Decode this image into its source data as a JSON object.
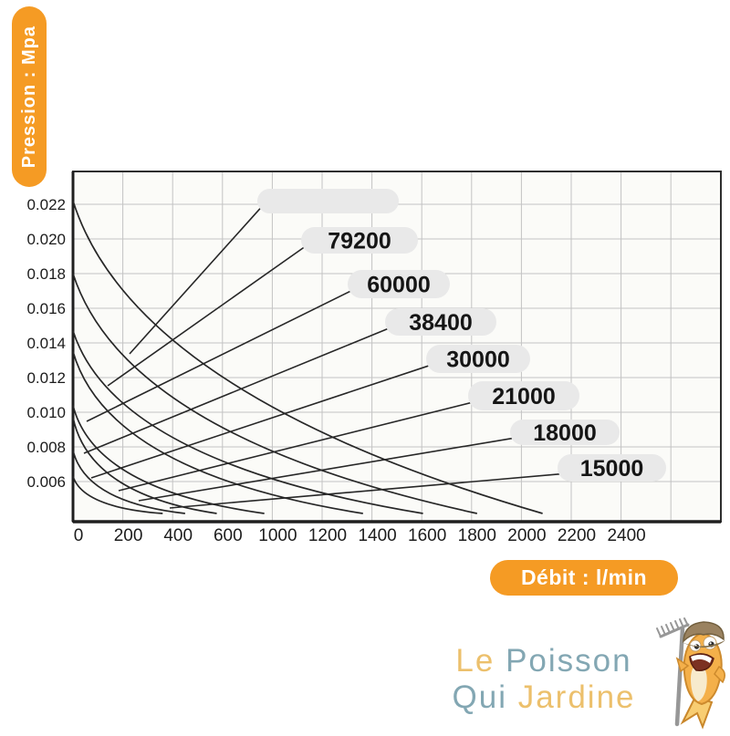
{
  "axis_labels": {
    "y": "Pression : Mpa",
    "x": "Débit : l/min"
  },
  "logo": {
    "word1": "Le",
    "word2": "Poisson",
    "word3": "Qui",
    "word4": "Jardine"
  },
  "colors": {
    "accent_orange": "#f59b24",
    "pill_gray": "#e9e9e9",
    "pill_text": "#151515",
    "curve": "#272727",
    "grid": "#c3c3c3",
    "plot_bg": "#fbfbf8",
    "border": "#2e2e2e",
    "tick_text": "#1c1c1c",
    "logo_gold": "#ecc06c",
    "logo_teal": "#83a7b3"
  },
  "chart_data": {
    "type": "line",
    "title": "",
    "xlabel": "Débit : l/min",
    "ylabel": "Pression : Mpa",
    "grid": true,
    "legend_position": "labels-on-chart",
    "xlim": [
      0,
      2600
    ],
    "ylim": [
      0.0037,
      0.0237
    ],
    "x_tick_labels": [
      "0",
      "200",
      "400",
      "600",
      "1000",
      "1200",
      "1400",
      "1600",
      "1800",
      "2000",
      "2200",
      "2400"
    ],
    "y_tick_labels": [
      "0.022",
      "0.020",
      "0.018",
      "0.016",
      "0.014",
      "0.012",
      "0.010",
      "0.008",
      "0.006"
    ],
    "y_tick_values": [
      0.022,
      0.02,
      0.018,
      0.016,
      0.014,
      0.012,
      0.01,
      0.008,
      0.006
    ],
    "series": [
      {
        "label": "",
        "y_intercept_mpa": 0.0222,
        "x_max_lmin": 1885,
        "bend": [
          0.13,
          0.62
        ],
        "leader_from": [
          142,
          388
        ],
        "label_box": [
          282,
          207,
          155,
          27
        ]
      },
      {
        "label": "79200",
        "y_intercept_mpa": 0.018,
        "x_max_lmin": 1622,
        "bend": [
          0.13,
          0.68
        ],
        "leader_from": [
          118,
          423
        ],
        "label_box": [
          330,
          249,
          128,
          29
        ]
      },
      {
        "label": "60000",
        "y_intercept_mpa": 0.0147,
        "x_max_lmin": 1405,
        "bend": [
          0.12,
          0.72
        ],
        "leader_from": [
          95,
          462
        ],
        "label_box": [
          381,
          296,
          112,
          31
        ]
      },
      {
        "label": "38400",
        "y_intercept_mpa": 0.0135,
        "x_max_lmin": 1164,
        "bend": [
          0.12,
          0.75
        ],
        "leader_from": [
          92,
          497
        ],
        "label_box": [
          422,
          338,
          122,
          30
        ]
      },
      {
        "label": "30000",
        "y_intercept_mpa": 0.0104,
        "x_max_lmin": 768,
        "bend": [
          0.11,
          0.78
        ],
        "leader_from": [
          100,
          524
        ],
        "label_box": [
          467,
          378,
          114,
          31
        ]
      },
      {
        "label": "21000",
        "y_intercept_mpa": 0.0097,
        "x_max_lmin": 577,
        "bend": [
          0.11,
          0.8
        ],
        "leader_from": [
          130,
          538
        ],
        "label_box": [
          513,
          418,
          122,
          32
        ]
      },
      {
        "label": "18000",
        "y_intercept_mpa": 0.0078,
        "x_max_lmin": 450,
        "bend": [
          0.11,
          0.82
        ],
        "leader_from": [
          152,
          549
        ],
        "label_box": [
          559,
          460,
          120,
          28
        ]
      },
      {
        "label": "15000",
        "y_intercept_mpa": 0.0063,
        "x_max_lmin": 360,
        "bend": [
          0.11,
          0.84
        ],
        "leader_from": [
          186,
          557
        ],
        "label_box": [
          611,
          498,
          119,
          30
        ]
      }
    ]
  }
}
